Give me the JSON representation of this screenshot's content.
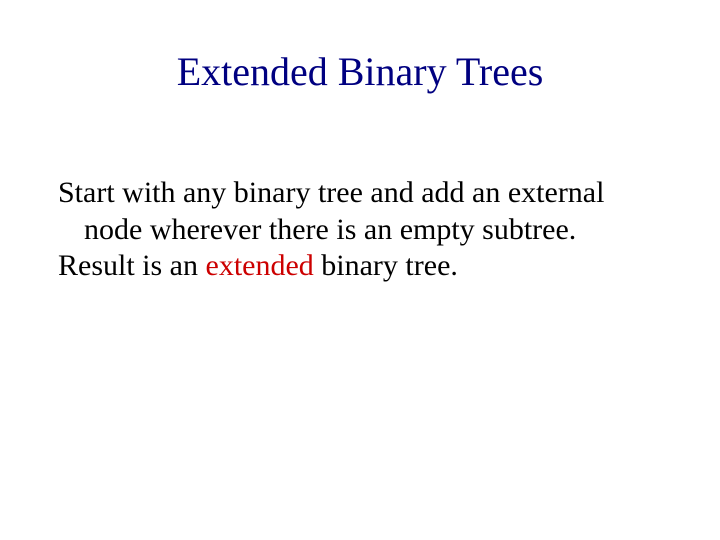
{
  "slide": {
    "title": "Extended Binary Trees",
    "title_color": "#000080",
    "title_fontsize": 40,
    "body_fontsize": 30,
    "body_color": "#000000",
    "highlight_color": "#cc0000",
    "background_color": "#ffffff",
    "para1_a": "Start with any binary tree and add an external node wherever there is an empty subtree.",
    "para2_a": "Result is an ",
    "para2_highlight": "extended",
    "para2_b": " binary tree."
  }
}
